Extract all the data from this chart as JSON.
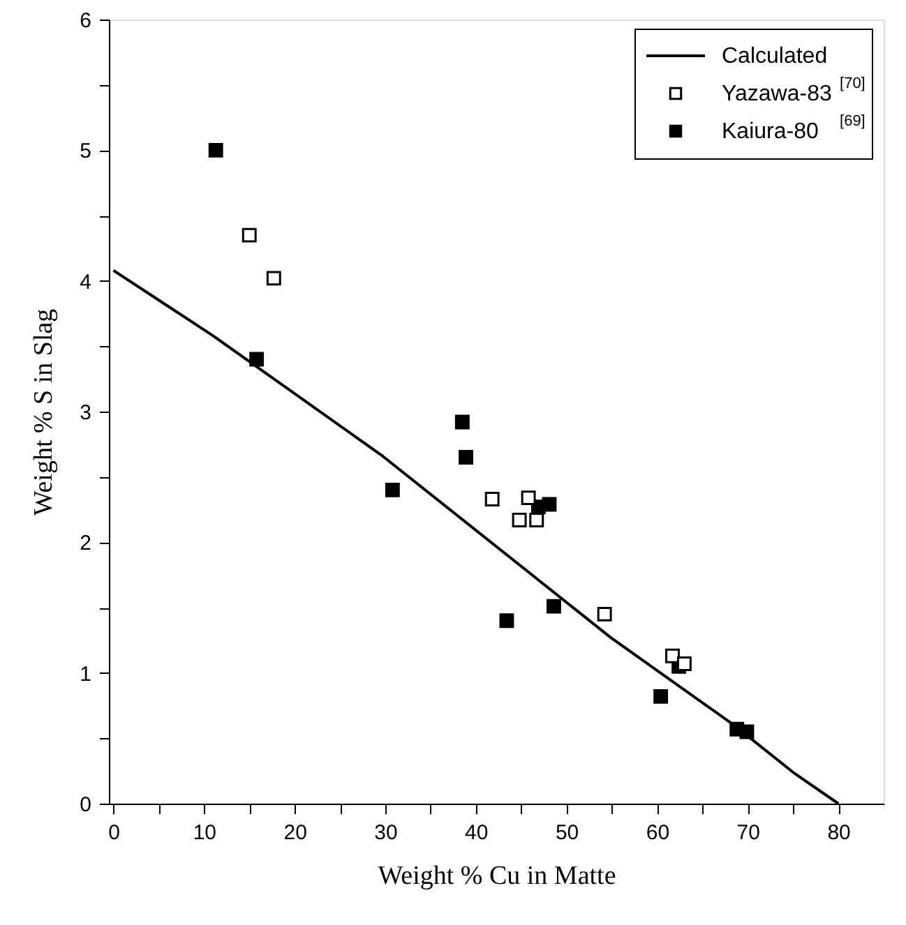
{
  "chart_data": {
    "type": "scatter",
    "xlabel": "Weight % Cu in Matte",
    "ylabel": "Weight % S in Slag",
    "xlim": [
      -0.5,
      85
    ],
    "ylim": [
      0,
      6
    ],
    "xticks": [
      0,
      {
        "value": 5,
        "label": null
      },
      10,
      {
        "value": 15,
        "label": null
      },
      20,
      {
        "value": 25,
        "label": null
      },
      30,
      {
        "value": 35,
        "label": null
      },
      40,
      {
        "value": 45,
        "label": null
      },
      50,
      {
        "value": 55,
        "label": null
      },
      60,
      {
        "value": 65,
        "label": null
      },
      70,
      {
        "value": 75,
        "label": null
      },
      80
    ],
    "yticks": [
      0,
      {
        "value": 0.5,
        "label": null
      },
      1,
      {
        "value": 1.5,
        "label": null
      },
      2,
      {
        "value": 2.5,
        "label": null
      },
      3,
      {
        "value": 3.5,
        "label": null
      },
      4,
      {
        "value": 4.5,
        "label": null
      },
      5,
      {
        "value": 5.5,
        "label": null
      },
      6
    ],
    "grid": false,
    "legend": "top right",
    "series": [
      {
        "name": "Calculated",
        "type": "line",
        "color": "#000000",
        "marker": "none",
        "line_style": "solid",
        "x": [
          0,
          11.0,
          29.7,
          54.9,
          68.5,
          75.0,
          80
        ],
        "values": [
          4.08,
          3.58,
          2.66,
          1.27,
          0.6,
          0.24,
          0
        ]
      },
      {
        "name": "Yazawa-83$^{[70]}$",
        "color": "#ffffff",
        "marker": "square",
        "x": [
          15.0,
          17.7,
          41.8,
          45.8,
          44.8,
          46.7,
          54.2,
          61.7,
          63.0
        ],
        "values": [
          4.35,
          4.02,
          2.33,
          2.34,
          2.17,
          2.17,
          1.45,
          1.13,
          1.07
        ]
      },
      {
        "name": "Kaiura-80$^{[69]}$",
        "color": "#000000",
        "marker": "square",
        "x": [
          11.3,
          15.8,
          38.5,
          38.9,
          30.8,
          46.9,
          48.1,
          48.6,
          43.4,
          62.4,
          60.4,
          68.8,
          69.9
        ],
        "values": [
          5.0,
          3.4,
          2.92,
          2.65,
          2.4,
          2.27,
          2.29,
          1.51,
          1.4,
          1.05,
          0.82,
          0.57,
          0.55
        ]
      }
    ]
  }
}
